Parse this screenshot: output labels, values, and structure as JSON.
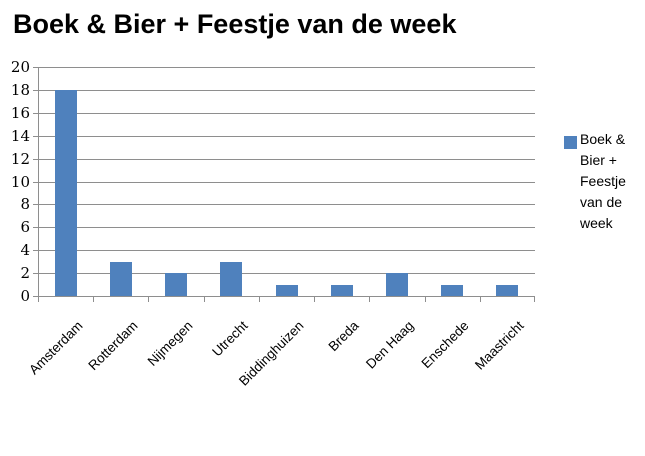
{
  "chart_data": {
    "type": "bar",
    "title": "Boek & Bier + Feestje van de week",
    "categories": [
      "Amsterdam",
      "Rotterdam",
      "Nijmegen",
      "Utrecht",
      "Biddinghuizen",
      "Breda",
      "Den Haag",
      "Enschede",
      "Maastricht"
    ],
    "values": [
      18,
      3,
      2,
      3,
      1,
      1,
      2,
      1,
      1
    ],
    "series_name": "Boek & Bier + Feestje van de week",
    "xlabel": "",
    "ylabel": "",
    "ylim": [
      0,
      20
    ],
    "ytick_step": 2,
    "yticks": [
      0,
      2,
      4,
      6,
      8,
      10,
      12,
      14,
      16,
      18,
      20
    ],
    "grid": true,
    "legend_position": "right",
    "colors": {
      "bar": "#4F81BD",
      "gridline": "#8E8E8E",
      "axis": "#8E8E8E",
      "text": "#000000",
      "background": "#FFFFFF"
    }
  },
  "legend": {
    "label": "Boek & Bier + Feestje van de week"
  }
}
